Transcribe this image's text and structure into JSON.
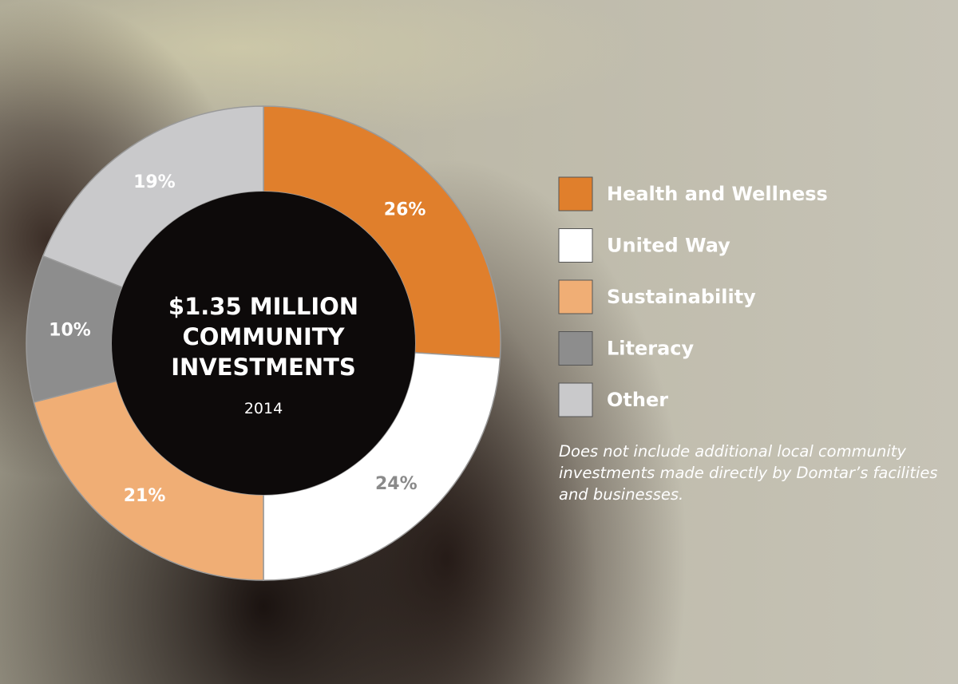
{
  "chart_data": {
    "type": "donut",
    "title": "$1.35 MILLION COMMUNITY INVESTMENTS",
    "subtitle": "2014",
    "categories": [
      "Health and Wellness",
      "United Way",
      "Sustainability",
      "Literacy",
      "Other"
    ],
    "values": [
      26,
      24,
      21,
      10,
      19
    ],
    "value_labels": [
      "26%",
      "24%",
      "21%",
      "10%",
      "19%"
    ],
    "colors": [
      "#e07f2c",
      "#ffffff",
      "#f0ae75",
      "#8d8d8d",
      "#c9c9cb"
    ],
    "note": "Does not include additional local community investments made directly by Domtar’s facilities and businesses."
  }
}
